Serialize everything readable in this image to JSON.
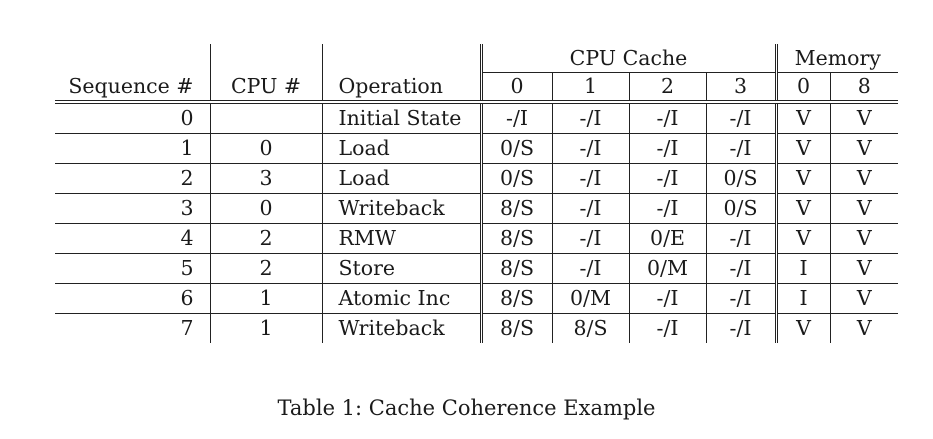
{
  "table": {
    "group_headers": {
      "cache": "CPU Cache",
      "memory": "Memory"
    },
    "columns": {
      "sequence": "Sequence #",
      "cpu": "CPU #",
      "operation": "Operation",
      "cache": [
        "0",
        "1",
        "2",
        "3"
      ],
      "memory": [
        "0",
        "8"
      ]
    },
    "rows": [
      {
        "seq": "0",
        "cpu": "",
        "op": "Initial State",
        "cache": [
          "-/I",
          "-/I",
          "-/I",
          "-/I"
        ],
        "mem": [
          "V",
          "V"
        ]
      },
      {
        "seq": "1",
        "cpu": "0",
        "op": "Load",
        "cache": [
          "0/S",
          "-/I",
          "-/I",
          "-/I"
        ],
        "mem": [
          "V",
          "V"
        ]
      },
      {
        "seq": "2",
        "cpu": "3",
        "op": "Load",
        "cache": [
          "0/S",
          "-/I",
          "-/I",
          "0/S"
        ],
        "mem": [
          "V",
          "V"
        ]
      },
      {
        "seq": "3",
        "cpu": "0",
        "op": "Writeback",
        "cache": [
          "8/S",
          "-/I",
          "-/I",
          "0/S"
        ],
        "mem": [
          "V",
          "V"
        ]
      },
      {
        "seq": "4",
        "cpu": "2",
        "op": "RMW",
        "cache": [
          "8/S",
          "-/I",
          "0/E",
          "-/I"
        ],
        "mem": [
          "V",
          "V"
        ]
      },
      {
        "seq": "5",
        "cpu": "2",
        "op": "Store",
        "cache": [
          "8/S",
          "-/I",
          "0/M",
          "-/I"
        ],
        "mem": [
          "I",
          "V"
        ]
      },
      {
        "seq": "6",
        "cpu": "1",
        "op": "Atomic Inc",
        "cache": [
          "8/S",
          "0/M",
          "-/I",
          "-/I"
        ],
        "mem": [
          "I",
          "V"
        ]
      },
      {
        "seq": "7",
        "cpu": "1",
        "op": "Writeback",
        "cache": [
          "8/S",
          "8/S",
          "-/I",
          "-/I"
        ],
        "mem": [
          "V",
          "V"
        ]
      }
    ]
  },
  "caption": "Table 1: Cache Coherence Example"
}
